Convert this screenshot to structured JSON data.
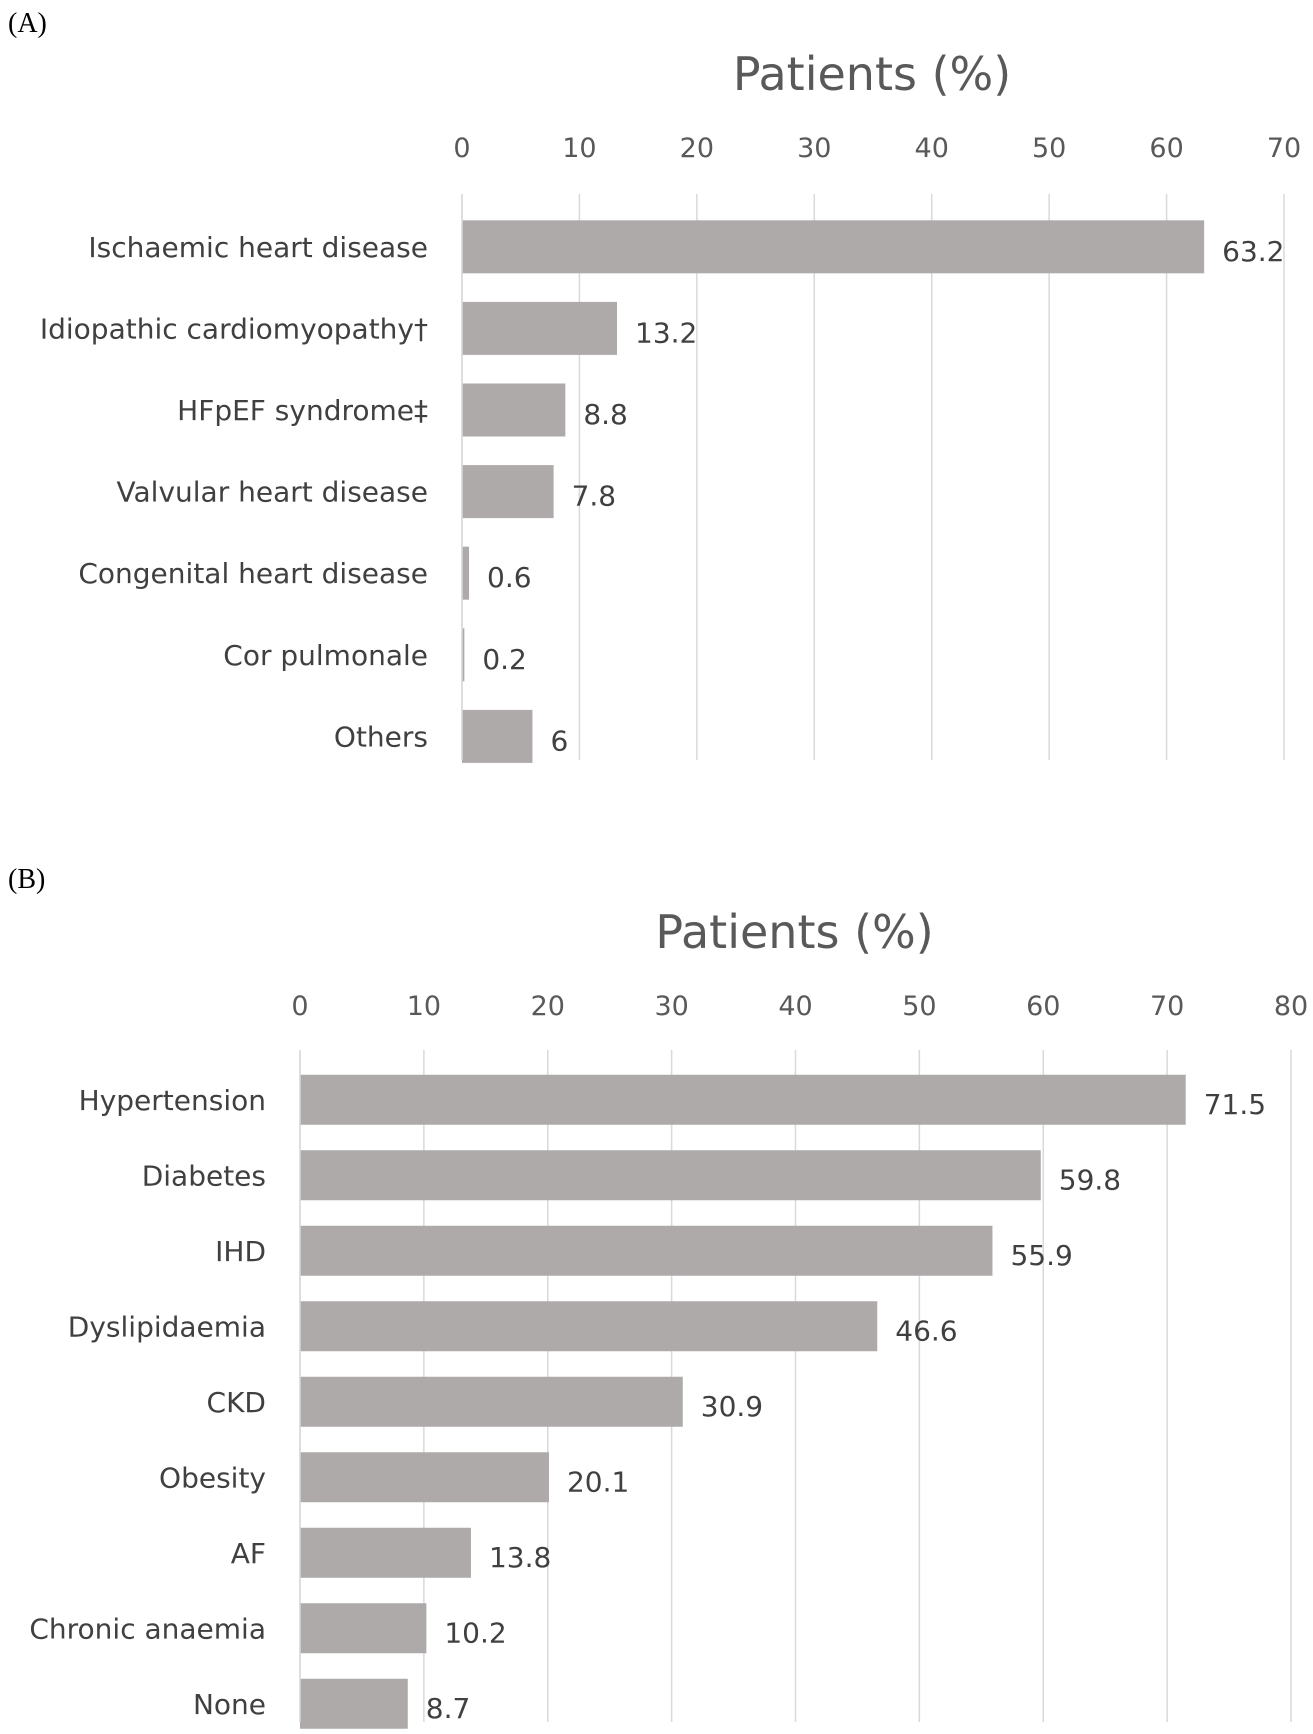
{
  "chart_data": [
    {
      "panel": "(A)",
      "type": "bar",
      "orientation": "horizontal",
      "title": "Patients (%)",
      "xlim": [
        0,
        70
      ],
      "ticks": [
        0,
        10,
        20,
        30,
        40,
        50,
        60,
        70
      ],
      "grid": true,
      "categories": [
        "Ischaemic heart disease",
        "Idiopathic cardiomyopathy†",
        "HFpEF syndrome‡",
        "Valvular heart disease",
        "Congenital heart disease",
        "Cor pulmonale",
        "Others"
      ],
      "values": [
        63.2,
        13.2,
        8.8,
        7.8,
        0.6,
        0.2,
        6
      ],
      "data_labels": [
        "63.2",
        "13.2",
        "8.8",
        "7.8",
        "0.6",
        "0.2",
        "6"
      ],
      "bar_color": "#AEAAAA"
    },
    {
      "panel": "(B)",
      "type": "bar",
      "orientation": "horizontal",
      "title": "Patients (%)",
      "xlim": [
        0,
        80
      ],
      "ticks": [
        0,
        10,
        20,
        30,
        40,
        50,
        60,
        70,
        80
      ],
      "grid": true,
      "categories": [
        "Hypertension",
        "Diabetes",
        "IHD",
        "Dyslipidaemia",
        "CKD",
        "Obesity",
        "AF",
        "Chronic anaemia",
        "None"
      ],
      "values": [
        71.5,
        59.8,
        55.9,
        46.6,
        30.9,
        20.1,
        13.8,
        10.2,
        8.7
      ],
      "data_labels": [
        "71.5",
        "59.8",
        "55.9",
        "46.6",
        "30.9",
        "20.1",
        "13.8",
        "10.2",
        "8.7"
      ],
      "bar_color": "#AEAAAA"
    }
  ]
}
